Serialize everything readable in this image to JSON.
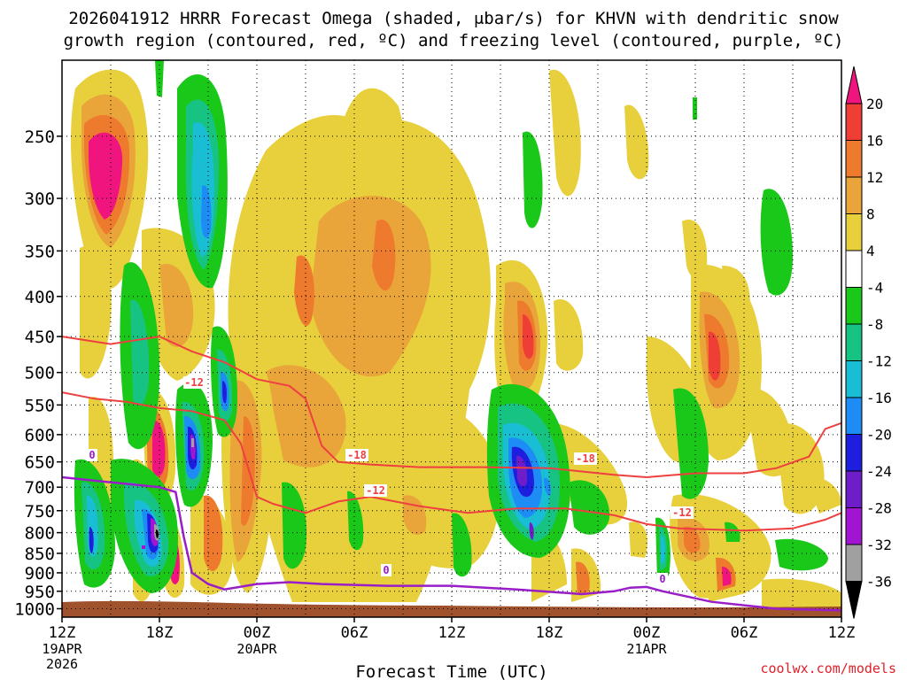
{
  "page": {
    "title_line1": "2026041912 HRRR Forecast Omega (shaded, μbar/s) for KHVN with dendritic snow",
    "title_line2": "growth region (contoured, red, ºC) and freezing level (contoured, purple, ºC)",
    "credit": "coolwx.com/models"
  },
  "chart_data": {
    "type": "time-height cross section",
    "title": "2026041912 HRRR Forecast Omega (shaded, μbar/s) for KHVN with dendritic snow growth region (contoured, red, ºC) and freezing level (contoured, purple, ºC)",
    "xlabel": "Forecast Time (UTC)",
    "ylabel": "",
    "xlim_hours": [
      0,
      48
    ],
    "ylim_hpa": [
      1025,
      200
    ],
    "grid": "dotted",
    "x_ticks": [
      {
        "hour": 0,
        "label": "12Z",
        "sub1": "19APR",
        "sub2": "2026"
      },
      {
        "hour": 6,
        "label": "18Z",
        "sub1": "",
        "sub2": ""
      },
      {
        "hour": 12,
        "label": "00Z",
        "sub1": "20APR",
        "sub2": ""
      },
      {
        "hour": 18,
        "label": "06Z",
        "sub1": "",
        "sub2": ""
      },
      {
        "hour": 24,
        "label": "12Z",
        "sub1": "",
        "sub2": ""
      },
      {
        "hour": 30,
        "label": "18Z",
        "sub1": "",
        "sub2": ""
      },
      {
        "hour": 36,
        "label": "00Z",
        "sub1": "21APR",
        "sub2": ""
      },
      {
        "hour": 42,
        "label": "06Z",
        "sub1": "",
        "sub2": ""
      },
      {
        "hour": 48,
        "label": "12Z",
        "sub1": "",
        "sub2": ""
      }
    ],
    "y_ticks": [
      250,
      300,
      350,
      400,
      450,
      500,
      550,
      600,
      650,
      700,
      750,
      800,
      850,
      900,
      950,
      1000
    ],
    "colorbar": {
      "labels": [
        "20",
        "16",
        "12",
        "8",
        "4",
        "-4",
        "-8",
        "-12",
        "-16",
        "-20",
        "-24",
        "-28",
        "-32",
        "-36"
      ],
      "bins_top_to_bottom": [
        {
          "range": ">20",
          "color": "#f0147e"
        },
        {
          "range": "16 to 20",
          "color": "#ef3e36"
        },
        {
          "range": "12 to 16",
          "color": "#ee7a2e"
        },
        {
          "range": "8 to 12",
          "color": "#e9a43a"
        },
        {
          "range": "4 to 8",
          "color": "#e8cf3c"
        },
        {
          "range": "-4 to 4",
          "color": "#ffffff"
        },
        {
          "range": "-8 to -4",
          "color": "#19c819"
        },
        {
          "range": "-12 to -8",
          "color": "#16c382"
        },
        {
          "range": "-16 to -12",
          "color": "#19bed4"
        },
        {
          "range": "-20 to -16",
          "color": "#1e8cf5"
        },
        {
          "range": "-24 to -20",
          "color": "#1e1ede"
        },
        {
          "range": "-28 to -24",
          "color": "#6e1ec8"
        },
        {
          "range": "-32 to -28",
          "color": "#a014d2"
        },
        {
          "range": "-36 to -32",
          "color": "#a0a0a0"
        },
        {
          "range": "<-36",
          "color": "#000000"
        }
      ]
    },
    "contour_labels": {
      "red_minus12_a": "-12",
      "red_minus18": "-18",
      "red_minus18_b": "-18",
      "red_minus12_b": "-12",
      "red_minus12_c": "-12",
      "purple_0_a": "0",
      "purple_0_b": "0",
      "purple_0_c": "0"
    },
    "isotherm_minus18_upper": [
      [
        0,
        450
      ],
      [
        3,
        460
      ],
      [
        6,
        450
      ],
      [
        8,
        470
      ],
      [
        10,
        485
      ],
      [
        12,
        510
      ],
      [
        14,
        520
      ],
      [
        15,
        540
      ],
      [
        16,
        620
      ],
      [
        17,
        650
      ],
      [
        19,
        655
      ],
      [
        22,
        660
      ],
      [
        26,
        660
      ],
      [
        30,
        662
      ],
      [
        34,
        675
      ],
      [
        36,
        680
      ],
      [
        39,
        672
      ],
      [
        42,
        672
      ],
      [
        44,
        662
      ],
      [
        46,
        640
      ],
      [
        47,
        590
      ],
      [
        48,
        580
      ]
    ],
    "isotherm_minus12_upper": [
      [
        0,
        530
      ],
      [
        2,
        540
      ],
      [
        4,
        545
      ],
      [
        6,
        555
      ],
      [
        8,
        560
      ],
      [
        10,
        575
      ],
      [
        11,
        615
      ],
      [
        12,
        720
      ],
      [
        13,
        735
      ],
      [
        15,
        755
      ],
      [
        17,
        730
      ],
      [
        19,
        720
      ],
      [
        22,
        740
      ],
      [
        25,
        755
      ],
      [
        28,
        745
      ],
      [
        31,
        745
      ],
      [
        34,
        760
      ],
      [
        36,
        780
      ],
      [
        38,
        790
      ],
      [
        42,
        795
      ],
      [
        45,
        790
      ],
      [
        47,
        770
      ],
      [
        48,
        755
      ]
    ],
    "freezing_level_0C": [
      [
        0,
        680
      ],
      [
        3,
        690
      ],
      [
        6,
        700
      ],
      [
        7,
        710
      ],
      [
        7.5,
        810
      ],
      [
        8,
        900
      ],
      [
        9,
        930
      ],
      [
        10,
        945
      ],
      [
        12,
        930
      ],
      [
        14,
        925
      ],
      [
        16,
        930
      ],
      [
        20,
        935
      ],
      [
        24,
        935
      ],
      [
        28,
        945
      ],
      [
        32,
        958
      ],
      [
        34,
        950
      ],
      [
        35,
        940
      ],
      [
        36,
        938
      ],
      [
        37,
        950
      ],
      [
        40,
        980
      ],
      [
        44,
        1000
      ],
      [
        48,
        1005
      ]
    ]
  }
}
